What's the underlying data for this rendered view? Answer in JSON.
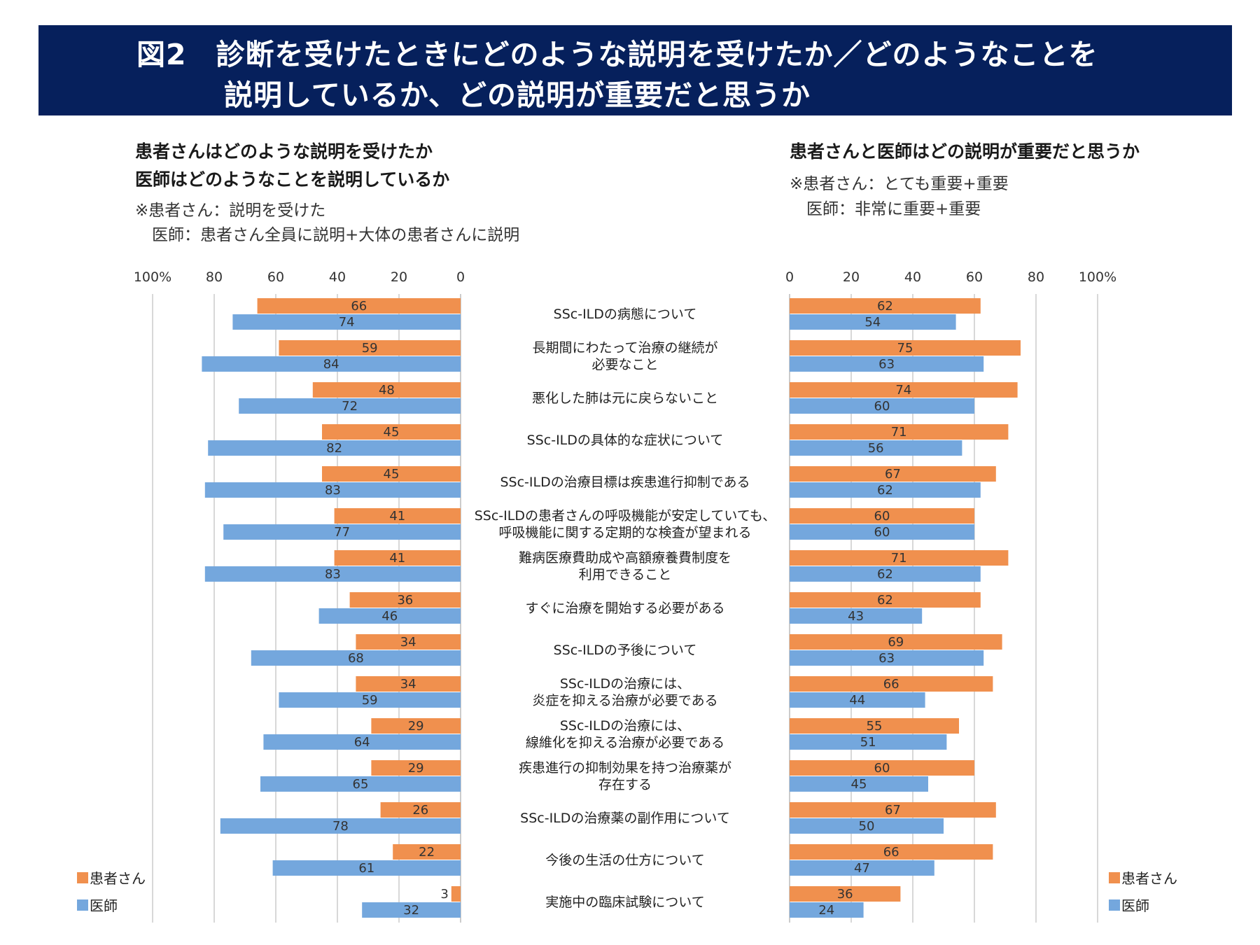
{
  "title": {
    "line1": "図2　診断を受けたときにどのような説明を受けたか／どのようなことを",
    "line2": "説明しているか、どの説明が重要だと思うか"
  },
  "left_panel": {
    "heading1": "患者さんはどのような説明を受けたか",
    "heading2": "医師はどのようなことを説明しているか",
    "note1": "※患者さん：説明を受けた",
    "note2": "医師：患者さん全員に説明+大体の患者さんに説明"
  },
  "right_panel": {
    "heading1": "患者さんと医師はどの説明が重要だと思うか",
    "note1": "※患者さん：とても重要+重要",
    "note2": "医師：非常に重要+重要"
  },
  "colors": {
    "patient": "#f0904e",
    "doctor": "#74a7dd",
    "axis": "#bfbfbf",
    "banner": "#06205c"
  },
  "chart_data": [
    {
      "type": "bar",
      "orientation": "horizontal",
      "direction": "right-to-left",
      "title": "患者さんはどのような説明を受けたか／医師はどのようなことを説明しているか",
      "xlim": [
        0,
        100
      ],
      "xticks": [
        "100%",
        "80",
        "60",
        "40",
        "20",
        "0"
      ],
      "legend": [
        "患者さん",
        "医師"
      ],
      "legend_position": "bottom-left",
      "categories": [
        "SSc-ILDの病態について",
        "長期間にわたって治療の継続が|必要なこと",
        "悪化した肺は元に戻らないこと",
        "SSc-ILDの具体的な症状について",
        "SSc-ILDの治療目標は疾患進行抑制である",
        "SSc-ILDの患者さんの呼吸機能が安定していても、|呼吸機能に関する定期的な検査が望まれる",
        "難病医療費助成や高額療養費制度を|利用できること",
        "すぐに治療を開始する必要がある",
        "SSc-ILDの予後について",
        "SSc-ILDの治療には、|炎症を抑える治療が必要である",
        "SSc-ILDの治療には、|線維化を抑える治療が必要である",
        "疾患進行の抑制効果を持つ治療薬が|存在する",
        "SSc-ILDの治療薬の副作用について",
        "今後の生活の仕方について",
        "実施中の臨床試験について"
      ],
      "series": [
        {
          "name": "患者さん",
          "values": [
            66,
            59,
            48,
            45,
            45,
            41,
            41,
            36,
            34,
            34,
            29,
            29,
            26,
            22,
            3
          ]
        },
        {
          "name": "医師",
          "values": [
            74,
            84,
            72,
            82,
            83,
            77,
            83,
            46,
            68,
            59,
            64,
            65,
            78,
            61,
            32
          ]
        }
      ]
    },
    {
      "type": "bar",
      "orientation": "horizontal",
      "direction": "left-to-right",
      "title": "患者さんと医師はどの説明が重要だと思うか",
      "xlim": [
        0,
        100
      ],
      "xticks": [
        "0",
        "20",
        "40",
        "60",
        "80",
        "100%"
      ],
      "legend": [
        "患者さん",
        "医師"
      ],
      "legend_position": "bottom-right",
      "series": [
        {
          "name": "患者さん",
          "values": [
            62,
            75,
            74,
            71,
            67,
            60,
            71,
            62,
            69,
            66,
            55,
            60,
            67,
            66,
            36
          ]
        },
        {
          "name": "医師",
          "values": [
            54,
            63,
            60,
            56,
            62,
            60,
            62,
            43,
            63,
            44,
            51,
            45,
            50,
            47,
            24
          ]
        }
      ]
    }
  ]
}
